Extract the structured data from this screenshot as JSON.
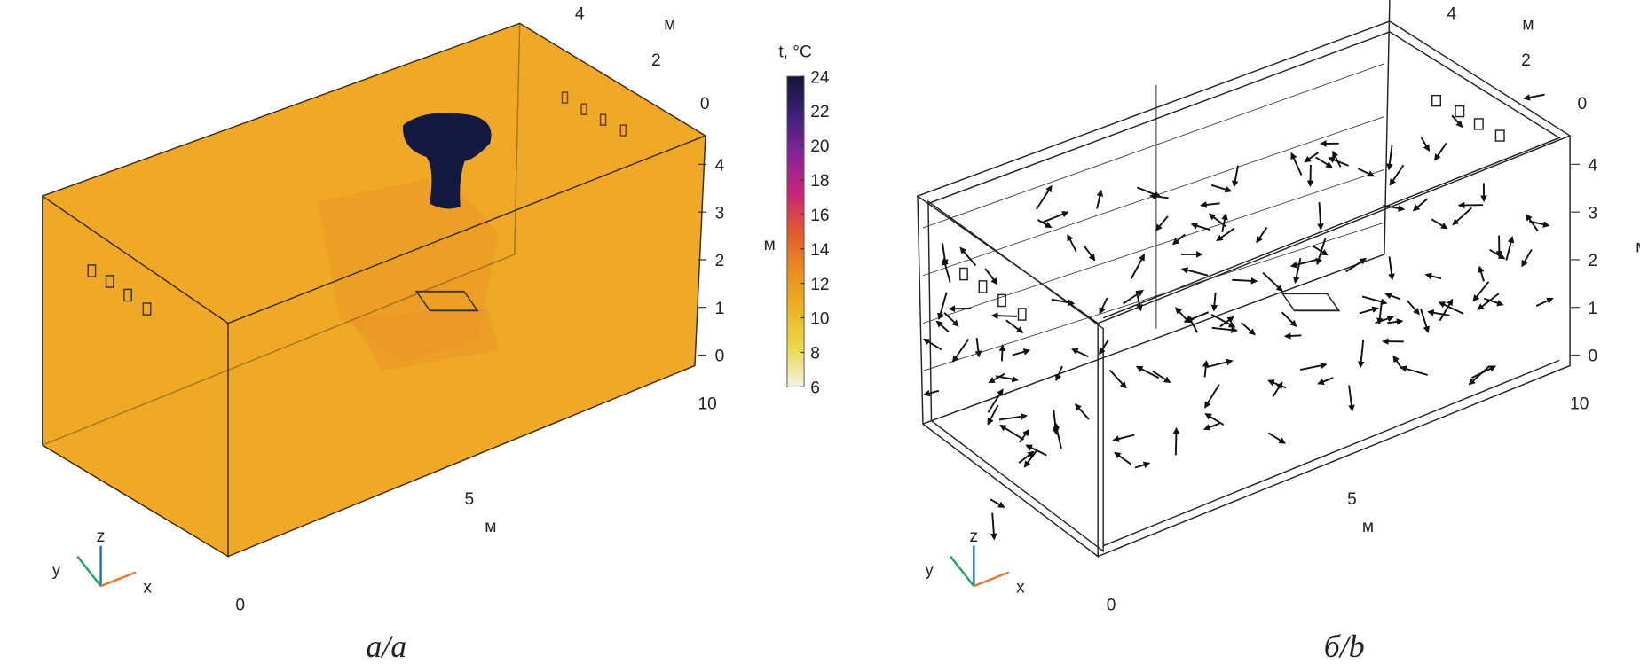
{
  "panels": [
    {
      "caption": "а/a",
      "axis_top": {
        "ticks": [
          "4",
          "2",
          "0"
        ],
        "unit": "м"
      },
      "axis_z": {
        "ticks": [
          "4",
          "3",
          "2",
          "1",
          "0"
        ],
        "unit": "м"
      },
      "axis_x": {
        "ticks": [
          "10",
          "5",
          "0"
        ],
        "unit": "м"
      },
      "triad": {
        "x": "x",
        "y": "y",
        "z": "z"
      },
      "fill_color": "#F0A926",
      "plume_color": "#14193F"
    },
    {
      "caption": "б/b",
      "axis_top": {
        "ticks": [
          "4",
          "2",
          "0"
        ],
        "unit": "м"
      },
      "axis_z": {
        "ticks": [
          "4",
          "3",
          "2",
          "1",
          "0"
        ],
        "unit": "м"
      },
      "axis_x": {
        "ticks": [
          "10",
          "5",
          "0"
        ],
        "unit": "м"
      },
      "triad": {
        "x": "x",
        "y": "y",
        "z": "z"
      }
    }
  ],
  "colorbar": {
    "title": "t, °C",
    "ticks": [
      "24",
      "22",
      "20",
      "18",
      "16",
      "14",
      "12",
      "10",
      "8",
      "6"
    ],
    "range": [
      6,
      24
    ],
    "colormap": [
      "#F3F1EA",
      "#EBD94A",
      "#EDB321",
      "#EB8B22",
      "#E25A2E",
      "#C8247A",
      "#87249A",
      "#3E1F7A",
      "#131638"
    ]
  },
  "triad_colors": {
    "x": "#E8732A",
    "y": "#1FA463",
    "z": "#1F6FB0"
  }
}
